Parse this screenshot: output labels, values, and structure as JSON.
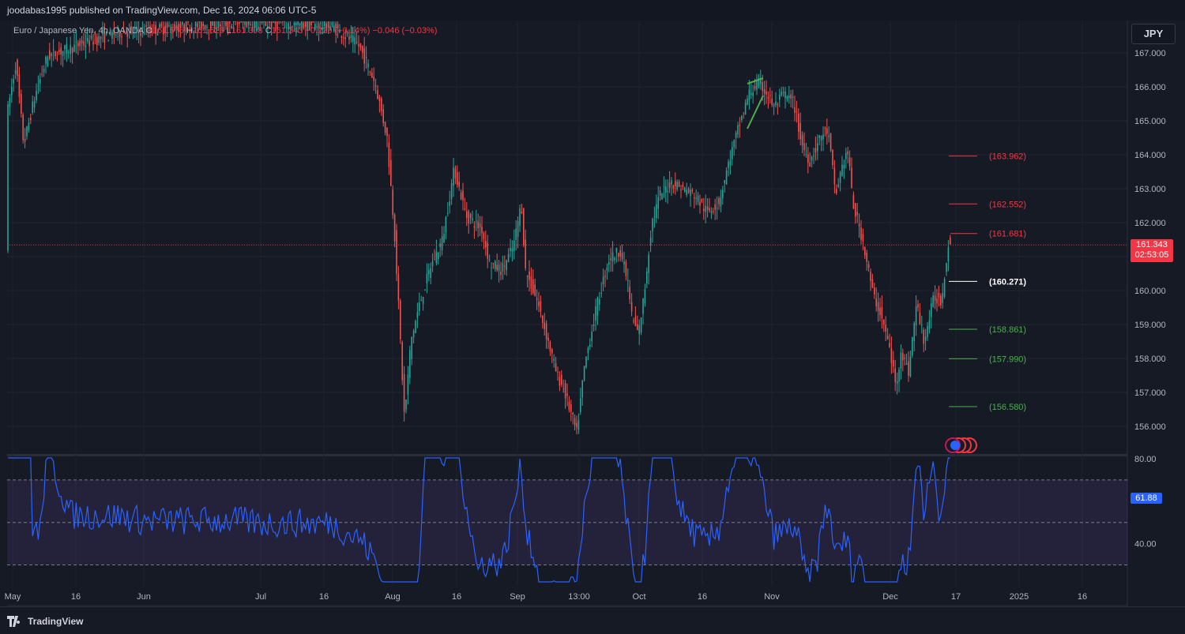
{
  "header": {
    "publish_info": "joodabas1995 published on TradingView.com, Dec 16, 2024 06:06 UTC-5"
  },
  "legend": {
    "symbol": "Euro / Japanese Yen, 4h, OANDA",
    "o_label": "O",
    "o_value": "161.576",
    "h_label": "H",
    "h_value": "161.626",
    "l_label": "L",
    "l_value": "161.308",
    "c_label": "C",
    "c_value": "161.343",
    "change": "−0.229 (−0.14%)",
    "secondary": "−0.046 (−0.03%)"
  },
  "currency": "JPY",
  "price_axis": [
    "167.000",
    "166.000",
    "165.000",
    "164.000",
    "163.000",
    "162.000",
    "161.000",
    "160.000",
    "159.000",
    "158.000",
    "157.000",
    "156.000"
  ],
  "last_price": {
    "value": "161.343",
    "countdown": "02:53:05"
  },
  "levels": [
    {
      "label": "(163.962)",
      "price": 163.962,
      "color": "#f23645"
    },
    {
      "label": "(162.552)",
      "price": 162.552,
      "color": "#f23645"
    },
    {
      "label": "(161.681)",
      "price": 161.681,
      "color": "#f23645"
    },
    {
      "label": "(160.271)",
      "price": 160.271,
      "color": "#ffffff"
    },
    {
      "label": "(158.861)",
      "price": 158.861,
      "color": "#4caf50"
    },
    {
      "label": "(157.990)",
      "price": 157.99,
      "color": "#4caf50"
    },
    {
      "label": "(156.580)",
      "price": 156.58,
      "color": "#4caf50"
    }
  ],
  "rsi": {
    "axis": [
      "80.00",
      "40.00"
    ],
    "value": "61.88",
    "upper": 70,
    "middle": 50,
    "lower": 30
  },
  "time_axis": [
    "May",
    "16",
    "Jun",
    "Jul",
    "16",
    "Aug",
    "16",
    "Sep",
    "13:00",
    "Oct",
    "16",
    "Nov",
    "Dec",
    "17",
    "2025",
    "16"
  ],
  "brand": "TradingView",
  "colors": {
    "up": "#26a69a",
    "down": "#ef5350",
    "rsi_line": "#2962ff",
    "rsi_band": "#7e57c2"
  }
}
